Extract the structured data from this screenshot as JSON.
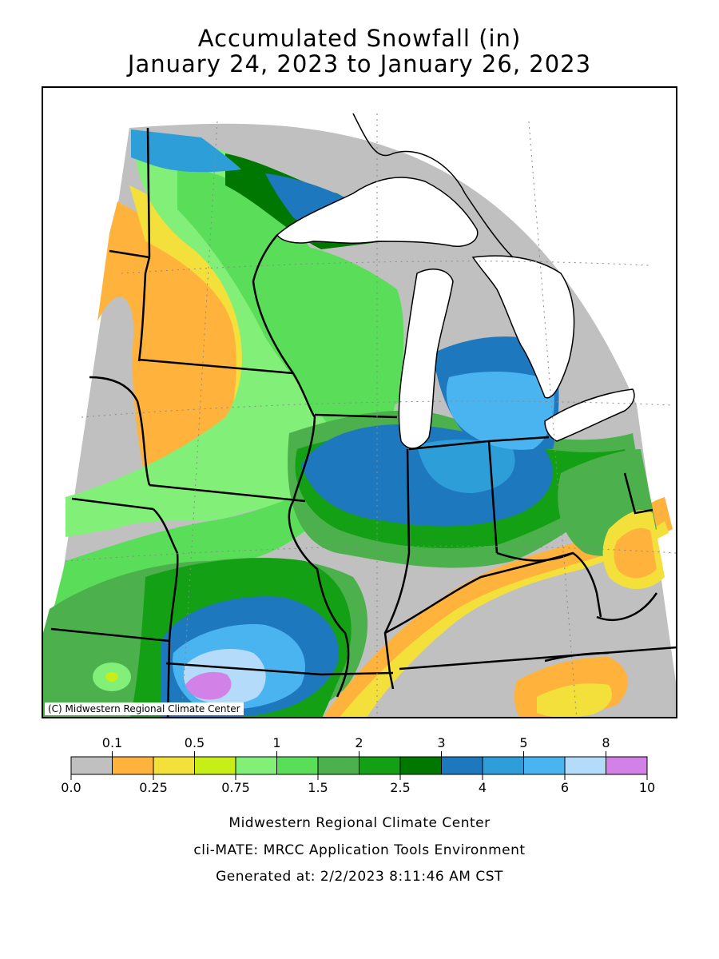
{
  "title_line1": "Accumulated Snowfall (in)",
  "title_line2": "January 24, 2023 to January 26, 2023",
  "map": {
    "credit": "(C) Midwestern Regional Climate Center",
    "colors": {
      "water": "#ffffff",
      "border": "#000000"
    }
  },
  "legend": {
    "top_labels": [
      "0.1",
      "0.5",
      "1",
      "2",
      "3",
      "5",
      "8"
    ],
    "bottom_labels": [
      "0.0",
      "0.25",
      "0.75",
      "1.5",
      "2.5",
      "4",
      "6",
      "10"
    ],
    "bins": [
      {
        "from": 0.0,
        "to": 0.1,
        "color": "#c0c0c0"
      },
      {
        "from": 0.1,
        "to": 0.25,
        "color": "#ffb23c"
      },
      {
        "from": 0.25,
        "to": 0.5,
        "color": "#f4e03a"
      },
      {
        "from": 0.5,
        "to": 0.75,
        "color": "#c8ee18"
      },
      {
        "from": 0.75,
        "to": 1,
        "color": "#82f078"
      },
      {
        "from": 1,
        "to": 1.5,
        "color": "#5ade5a"
      },
      {
        "from": 1.5,
        "to": 2,
        "color": "#4cb04c"
      },
      {
        "from": 2,
        "to": 2.5,
        "color": "#14a014"
      },
      {
        "from": 2.5,
        "to": 3,
        "color": "#007800"
      },
      {
        "from": 3,
        "to": 4,
        "color": "#1e78be"
      },
      {
        "from": 4,
        "to": 5,
        "color": "#2e9ed8"
      },
      {
        "from": 5,
        "to": 6,
        "color": "#4ab4f0"
      },
      {
        "from": 6,
        "to": 8,
        "color": "#b4dcfa"
      },
      {
        "from": 8,
        "to": 10,
        "color": "#d282e6"
      }
    ]
  },
  "footer": {
    "line1": "Midwestern Regional Climate Center",
    "line2": "cli-MATE: MRCC Application Tools Environment",
    "line3": "Generated at: 2/2/2023 8:11:46 AM CST"
  }
}
